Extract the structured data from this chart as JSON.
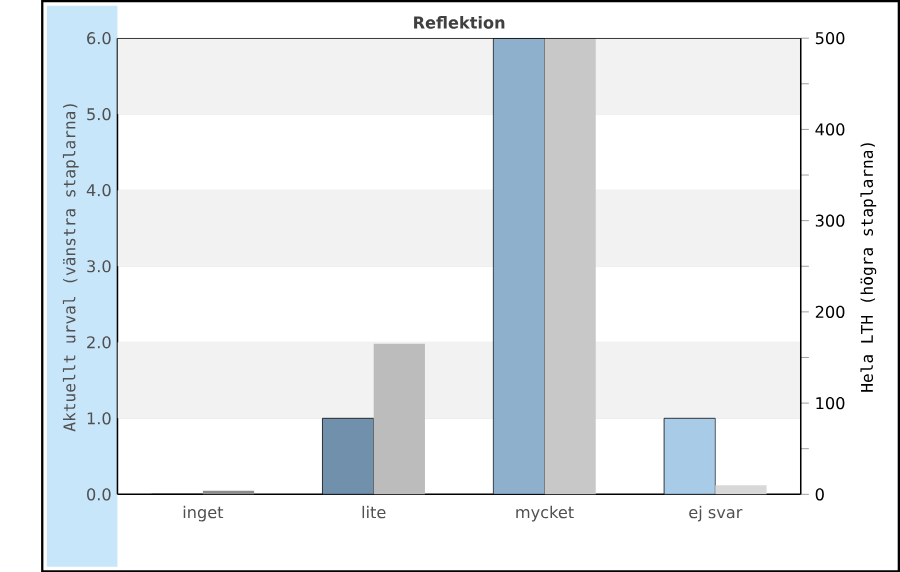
{
  "chart_data": {
    "type": "bar",
    "title": "Reflektion",
    "ylabel": "Aktuellt urval (vänstra staplarna)",
    "y2label": "Hela LTH (högra staplarna)",
    "categories": [
      "inget",
      "lite",
      "mycket",
      "ej svar"
    ],
    "series": [
      {
        "values": [
          0,
          1,
          6,
          1
        ],
        "colors": [
          "#7090ac",
          "#7090ac",
          "#8fb0cc",
          "#a8cce8"
        ]
      },
      {
        "axis": "y2",
        "values": [
          4,
          165,
          500,
          10
        ],
        "colors": [
          "#8c8c8c",
          "#bcbcbc",
          "#c8c8c8",
          "#d8d8d8"
        ]
      }
    ],
    "ylim": [
      0,
      6
    ],
    "yticks": [
      {
        "value": 0,
        "label": "0.0"
      },
      {
        "value": 1,
        "label": "1.0"
      },
      {
        "value": 2,
        "label": "2.0"
      },
      {
        "value": 3,
        "label": "3.0"
      },
      {
        "value": 4,
        "label": "4.0"
      },
      {
        "value": 5,
        "label": "5.0"
      },
      {
        "value": 6,
        "label": "6.0"
      }
    ],
    "y2lim": [
      0,
      500
    ],
    "y2ticks": [
      0,
      {
        "value": 50,
        "label": null
      },
      100,
      {
        "value": 150,
        "label": null
      },
      200,
      {
        "value": 250,
        "label": null
      },
      300,
      {
        "value": 350,
        "label": null
      },
      400,
      {
        "value": 450,
        "label": null
      },
      500
    ],
    "grid": "y",
    "bands": [
      {
        "axis": "y",
        "from": 1,
        "to": 2,
        "color": "#f2f2f2"
      },
      {
        "axis": "y",
        "from": 3,
        "to": 4,
        "color": "#f2f2f2"
      },
      {
        "axis": "y",
        "from": 5,
        "to": 6,
        "color": "#f2f2f2"
      }
    ]
  }
}
